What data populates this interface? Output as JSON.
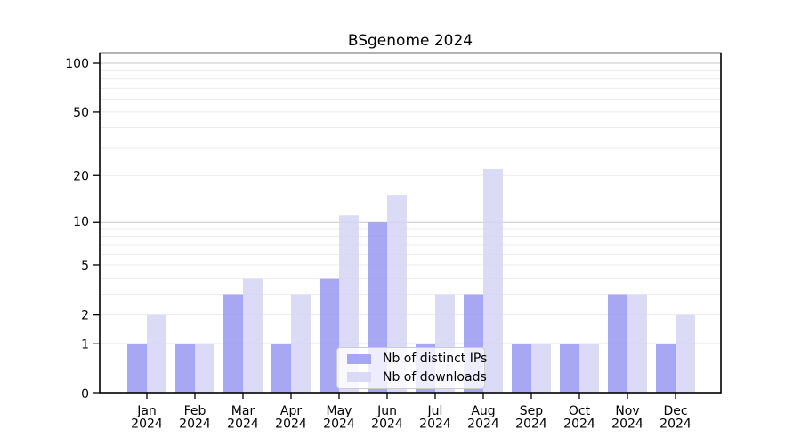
{
  "chart_data": {
    "type": "bar",
    "title": "BSgenome 2024",
    "categories": [
      "Jan",
      "Feb",
      "Mar",
      "Apr",
      "May",
      "Jun",
      "Jul",
      "Aug",
      "Sep",
      "Oct",
      "Nov",
      "Dec"
    ],
    "year_label": "2024",
    "series": [
      {
        "name": "Nb of distinct IPs",
        "color": "#9898f2",
        "values": [
          1,
          1,
          3,
          1,
          4,
          10,
          1,
          3,
          1,
          1,
          3,
          1
        ]
      },
      {
        "name": "Nb of downloads",
        "color": "#d5d5f6",
        "values": [
          2,
          1,
          4,
          3,
          11,
          15,
          3,
          22,
          1,
          1,
          3,
          2
        ]
      }
    ],
    "yscale": "log1p",
    "ylim": [
      0,
      113
    ],
    "yticks": [
      0,
      1,
      2,
      5,
      10,
      20,
      50,
      100
    ],
    "major_gridlines": [
      1,
      10,
      100
    ],
    "minor_gridlines": [
      2,
      3,
      4,
      5,
      6,
      7,
      8,
      9,
      20,
      30,
      40,
      50,
      60,
      70,
      80,
      90
    ],
    "grid": true,
    "legend_position": "inside lower-center"
  },
  "colors": {
    "background": "#ffffff",
    "frame": "#000000",
    "major_grid": "#c8c8c8",
    "minor_grid": "#ececec",
    "tick": "#000000",
    "bar_distinct_ips": "#9898f2",
    "bar_downloads": "#d5d5f6"
  }
}
